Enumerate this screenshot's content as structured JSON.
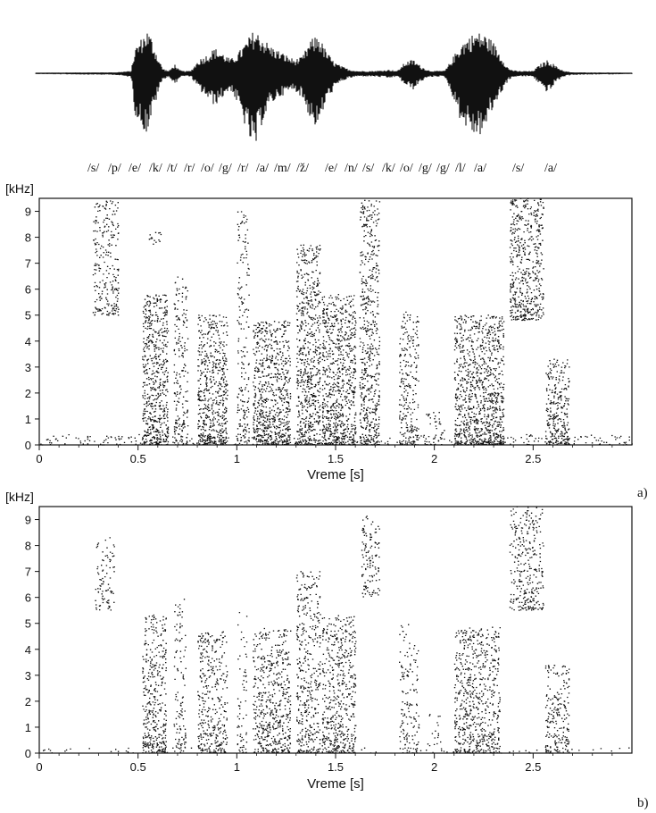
{
  "chart_data": [
    {
      "type": "line",
      "panel": "waveform",
      "time_range_s": [
        0,
        3.0
      ],
      "envelope": {
        "t": [
          0.0,
          0.4,
          0.48,
          0.5,
          0.53,
          0.56,
          0.58,
          0.6,
          0.62,
          0.64,
          0.67,
          0.7,
          0.72,
          0.74,
          0.78,
          0.82,
          0.86,
          0.9,
          0.94,
          0.98,
          1.02,
          1.06,
          1.1,
          1.14,
          1.18,
          1.22,
          1.26,
          1.3,
          1.34,
          1.38,
          1.42,
          1.46,
          1.5,
          1.54,
          1.58,
          1.62,
          1.66,
          1.7,
          1.74,
          1.78,
          1.82,
          1.86,
          1.9,
          1.94,
          1.98,
          2.02,
          2.06,
          2.1,
          2.14,
          2.18,
          2.22,
          2.26,
          2.3,
          2.34,
          2.38,
          2.42,
          2.46,
          2.5,
          2.54,
          2.58,
          2.62,
          2.66,
          2.7,
          3.0
        ],
        "amp_up": [
          0.01,
          0.02,
          0.05,
          0.55,
          0.75,
          0.95,
          0.8,
          0.55,
          0.3,
          0.1,
          0.05,
          0.2,
          0.08,
          0.05,
          0.05,
          0.3,
          0.4,
          0.55,
          0.45,
          0.3,
          0.45,
          0.7,
          0.95,
          0.8,
          0.6,
          0.5,
          0.4,
          0.3,
          0.35,
          0.7,
          0.85,
          0.5,
          0.25,
          0.15,
          0.08,
          0.05,
          0.05,
          0.05,
          0.06,
          0.08,
          0.05,
          0.25,
          0.3,
          0.15,
          0.06,
          0.05,
          0.06,
          0.35,
          0.65,
          0.8,
          0.9,
          0.85,
          0.7,
          0.4,
          0.1,
          0.05,
          0.05,
          0.05,
          0.2,
          0.3,
          0.15,
          0.05,
          0.02,
          0.01
        ],
        "amp_down": [
          0.01,
          0.02,
          0.05,
          0.5,
          0.65,
          0.75,
          0.55,
          0.4,
          0.2,
          0.08,
          0.04,
          0.15,
          0.06,
          0.04,
          0.04,
          0.2,
          0.3,
          0.4,
          0.3,
          0.2,
          0.4,
          0.7,
          1.0,
          0.6,
          0.4,
          0.3,
          0.25,
          0.2,
          0.3,
          0.55,
          0.7,
          0.35,
          0.2,
          0.1,
          0.06,
          0.04,
          0.04,
          0.04,
          0.05,
          0.06,
          0.04,
          0.15,
          0.2,
          0.1,
          0.05,
          0.04,
          0.05,
          0.3,
          0.6,
          0.7,
          0.8,
          0.7,
          0.45,
          0.25,
          0.08,
          0.04,
          0.04,
          0.04,
          0.15,
          0.25,
          0.1,
          0.04,
          0.02,
          0.01
        ]
      }
    },
    {
      "type": "heatmap",
      "panel": "a)",
      "panel_label": "a)",
      "xlabel": "Vreme [s]",
      "ylabel": "[kHz]",
      "xlim": [
        0,
        3.0
      ],
      "ylim": [
        0,
        9.5
      ],
      "x_ticks": [
        "0",
        "0.5",
        "1",
        "1.5",
        "2",
        "2.5"
      ],
      "y_ticks": [
        "0",
        "1",
        "2",
        "3",
        "4",
        "5",
        "6",
        "7",
        "8",
        "9"
      ],
      "density": 0.55,
      "regions": [
        {
          "t": [
            0.0,
            3.0
          ],
          "f": [
            0.0,
            0.4
          ],
          "d": 0.35
        },
        {
          "t": [
            0.27,
            0.4
          ],
          "f": [
            5.0,
            9.4
          ],
          "d": 0.55
        },
        {
          "t": [
            0.52,
            0.65
          ],
          "f": [
            0.0,
            5.8
          ],
          "d": 1.0
        },
        {
          "t": [
            0.55,
            0.62
          ],
          "f": [
            7.7,
            8.2
          ],
          "d": 0.5
        },
        {
          "t": [
            0.68,
            0.75
          ],
          "f": [
            0.0,
            6.5
          ],
          "d": 0.55
        },
        {
          "t": [
            0.8,
            0.95
          ],
          "f": [
            0.0,
            5.0
          ],
          "d": 0.95
        },
        {
          "t": [
            1.0,
            1.06
          ],
          "f": [
            0.0,
            9.0
          ],
          "d": 0.45
        },
        {
          "t": [
            1.08,
            1.27
          ],
          "f": [
            0.0,
            4.8
          ],
          "d": 1.0
        },
        {
          "t": [
            1.3,
            1.42
          ],
          "f": [
            0.0,
            7.7
          ],
          "d": 0.9
        },
        {
          "t": [
            1.43,
            1.6
          ],
          "f": [
            0.0,
            5.8
          ],
          "d": 1.0
        },
        {
          "t": [
            1.62,
            1.72
          ],
          "f": [
            0.0,
            9.5
          ],
          "d": 0.75
        },
        {
          "t": [
            1.82,
            1.92
          ],
          "f": [
            0.0,
            5.2
          ],
          "d": 0.6
        },
        {
          "t": [
            1.95,
            2.05
          ],
          "f": [
            0.0,
            1.5
          ],
          "d": 0.3
        },
        {
          "t": [
            2.1,
            2.35
          ],
          "f": [
            0.0,
            5.0
          ],
          "d": 1.0
        },
        {
          "t": [
            2.38,
            2.55
          ],
          "f": [
            4.8,
            9.5
          ],
          "d": 0.85
        },
        {
          "t": [
            2.56,
            2.68
          ],
          "f": [
            0.0,
            3.3
          ],
          "d": 0.9
        }
      ]
    },
    {
      "type": "heatmap",
      "panel": "b)",
      "panel_label": "b)",
      "xlabel": "Vreme [s]",
      "ylabel": "[kHz]",
      "xlim": [
        0,
        3.0
      ],
      "ylim": [
        0,
        9.5
      ],
      "x_ticks": [
        "0",
        "0.5",
        "1",
        "1.5",
        "2",
        "2.5"
      ],
      "y_ticks": [
        "0",
        "1",
        "2",
        "3",
        "4",
        "5",
        "6",
        "7",
        "8",
        "9"
      ],
      "density": 0.4,
      "regions": [
        {
          "t": [
            0.0,
            3.0
          ],
          "f": [
            0.0,
            0.2
          ],
          "d": 0.25
        },
        {
          "t": [
            0.28,
            0.38
          ],
          "f": [
            5.5,
            8.3
          ],
          "d": 0.55
        },
        {
          "t": [
            0.52,
            0.64
          ],
          "f": [
            0.0,
            5.4
          ],
          "d": 1.0
        },
        {
          "t": [
            0.68,
            0.74
          ],
          "f": [
            0.0,
            6.0
          ],
          "d": 0.55
        },
        {
          "t": [
            0.8,
            0.95
          ],
          "f": [
            0.0,
            4.7
          ],
          "d": 0.9
        },
        {
          "t": [
            1.0,
            1.05
          ],
          "f": [
            0.0,
            5.5
          ],
          "d": 0.4
        },
        {
          "t": [
            1.08,
            1.27
          ],
          "f": [
            0.0,
            4.8
          ],
          "d": 1.0
        },
        {
          "t": [
            1.3,
            1.42
          ],
          "f": [
            0.0,
            7.0
          ],
          "d": 0.85
        },
        {
          "t": [
            1.43,
            1.6
          ],
          "f": [
            0.0,
            5.3
          ],
          "d": 1.0
        },
        {
          "t": [
            1.63,
            1.72
          ],
          "f": [
            6.0,
            9.2
          ],
          "d": 0.75
        },
        {
          "t": [
            1.82,
            1.92
          ],
          "f": [
            0.0,
            5.0
          ],
          "d": 0.5
        },
        {
          "t": [
            1.95,
            2.05
          ],
          "f": [
            0.0,
            1.5
          ],
          "d": 0.25
        },
        {
          "t": [
            2.1,
            2.33
          ],
          "f": [
            0.0,
            4.9
          ],
          "d": 1.0
        },
        {
          "t": [
            2.38,
            2.55
          ],
          "f": [
            5.5,
            9.5
          ],
          "d": 0.8
        },
        {
          "t": [
            2.56,
            2.68
          ],
          "f": [
            0.0,
            3.4
          ],
          "d": 0.9
        }
      ]
    }
  ],
  "phonemes": [
    "/s/",
    "/p/",
    "/e/",
    "/k/",
    "/t/",
    "/r/",
    "/o/",
    "/g/",
    "/r/",
    "/a/",
    "/m/",
    "/ž/",
    "/e/",
    "/n/",
    "/s/",
    "/k/",
    "/o/",
    "/g/",
    "/g/",
    "/l/",
    "/a/",
    "/s/",
    "/a/"
  ]
}
